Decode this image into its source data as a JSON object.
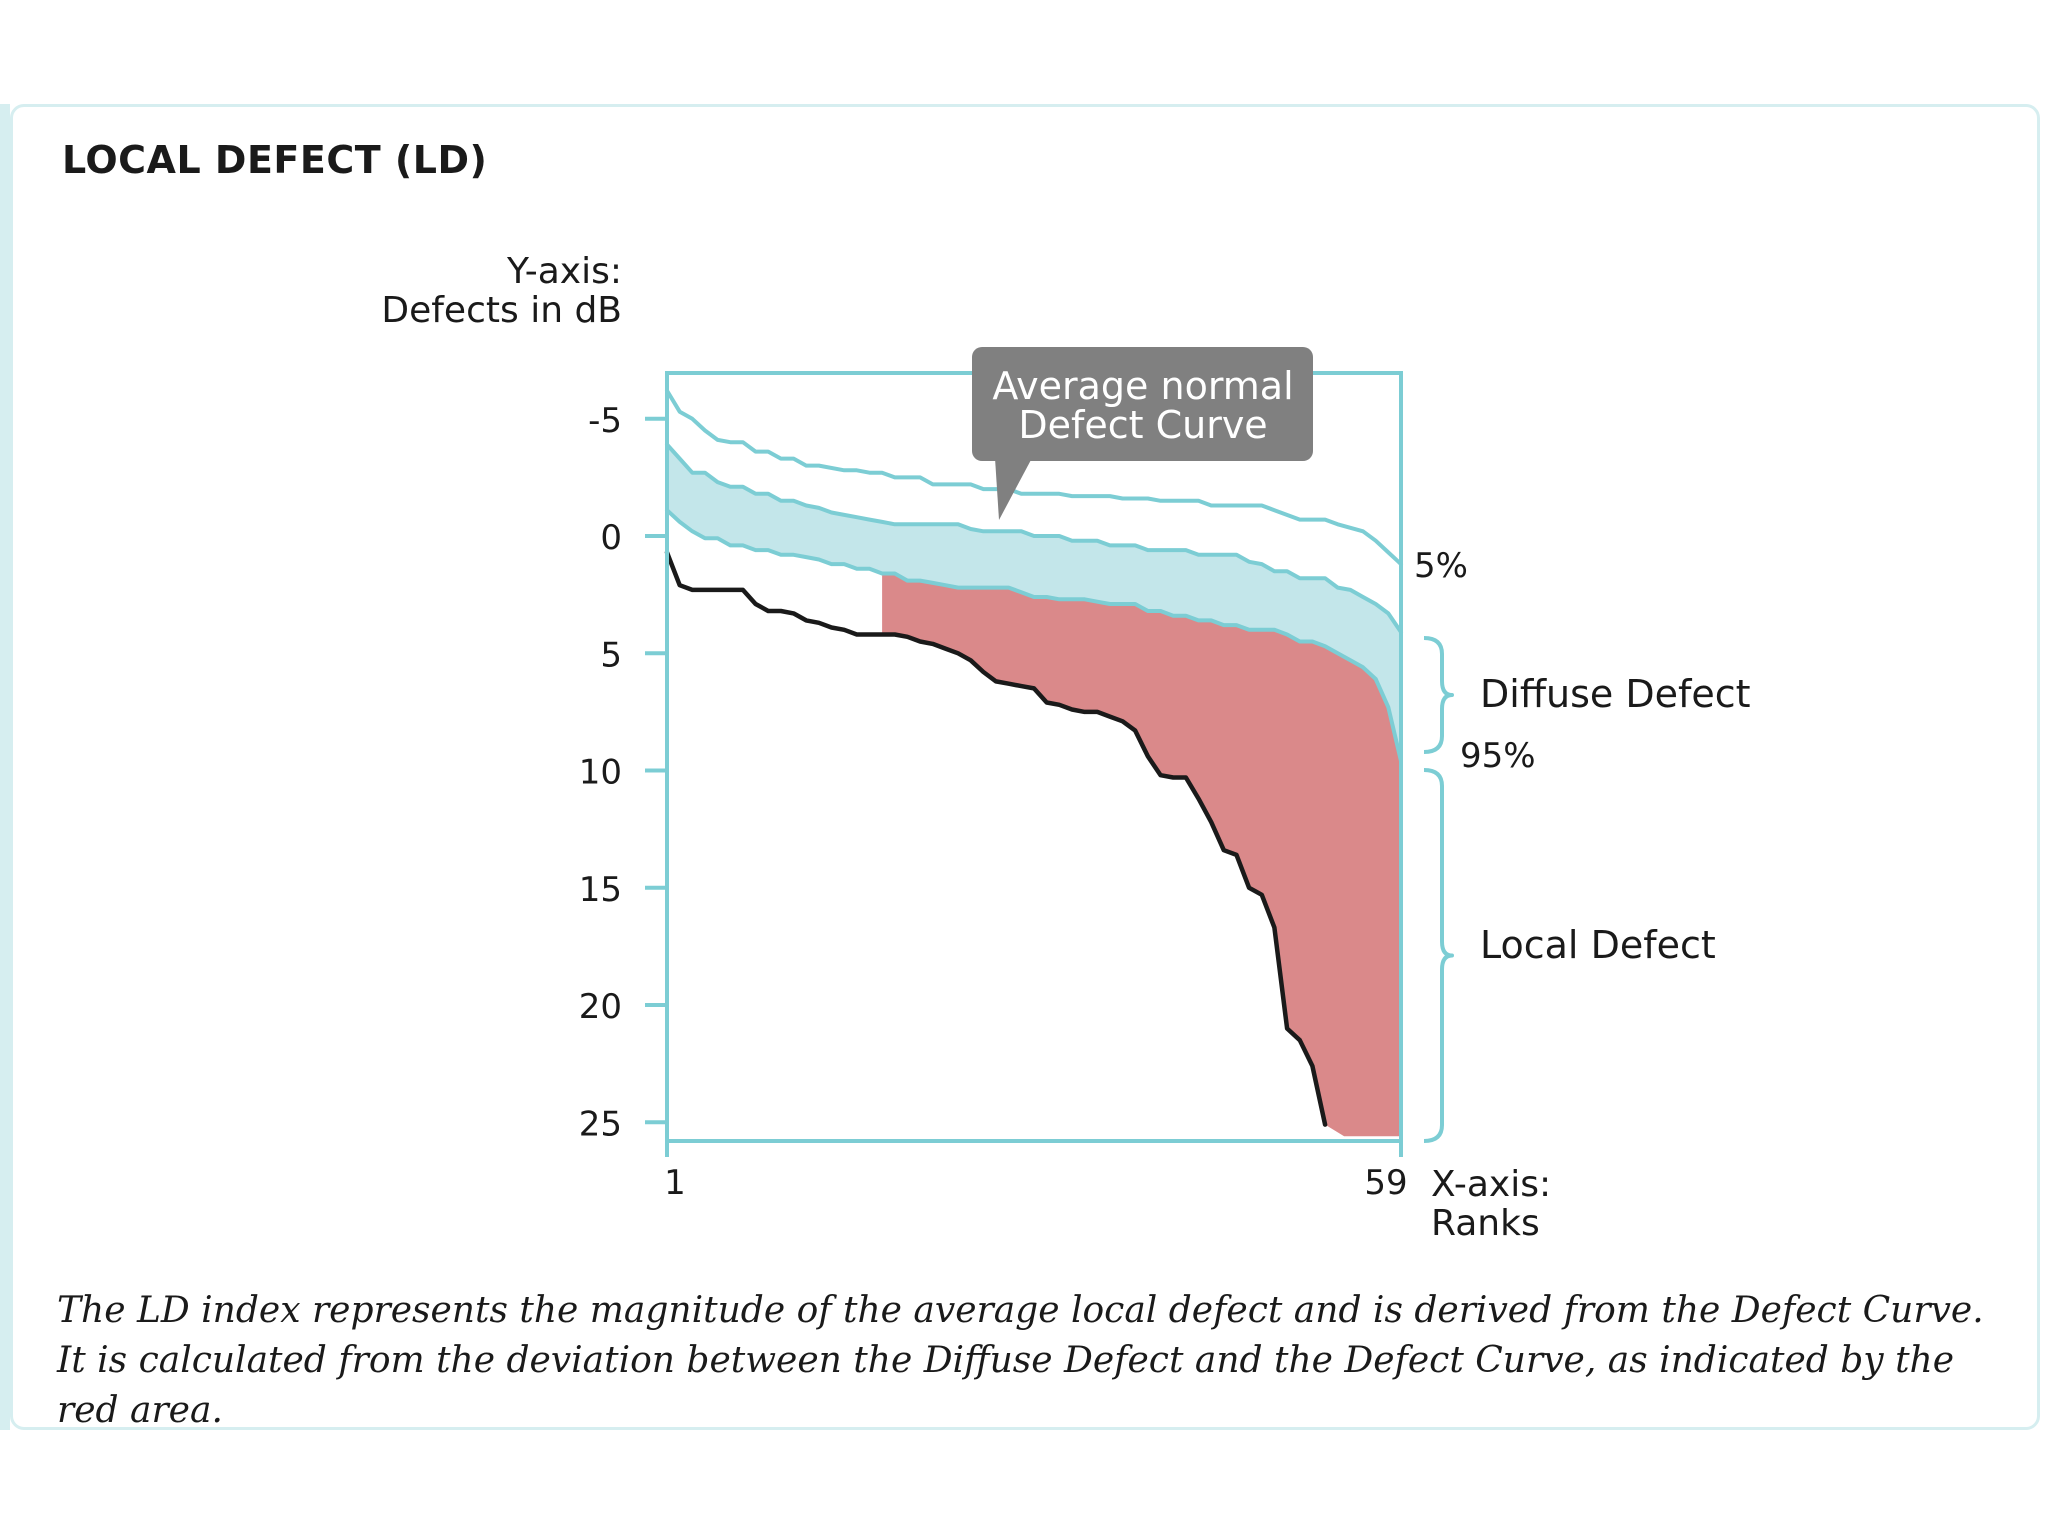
{
  "title": "LOCAL DEFECT (LD)",
  "caption": "The LD index represents the magnitude of the average local defect and is derived from the Defect Curve. It is calculated from the deviation between the Diffuse Defect and the Defect Curve, as indicated by the red area.",
  "colors": {
    "frame": "#7ccdd4",
    "band": "#c3e6ea",
    "local_defect": "#da898a",
    "defect_curve": "#1a1a1a",
    "callout": "#808080"
  },
  "chart_data": {
    "type": "line",
    "ylabel_lines": [
      "Y-axis:",
      "Defects in dB"
    ],
    "xlabel_lines": [
      "X-axis:",
      "Ranks"
    ],
    "yticks": [
      -5,
      0,
      5,
      10,
      15,
      20,
      25
    ],
    "xticks": [
      1,
      59
    ],
    "ylim": [
      -7,
      26
    ],
    "xlim": [
      1,
      59
    ],
    "y_inverted": true,
    "callout_lines": [
      "Average normal",
      "Defect Curve"
    ],
    "annotations": {
      "p5": "5%",
      "p95": "95%",
      "diffuse": "Diffuse Defect",
      "local": "Local Defect"
    },
    "series": [
      {
        "points": [
          [
            1,
            -6.2
          ],
          [
            2,
            -5.3
          ],
          [
            3,
            -5.0
          ],
          [
            4,
            -4.5
          ],
          [
            5,
            -4.1
          ],
          [
            6,
            -4.0
          ],
          [
            7,
            -4.0
          ],
          [
            8,
            -3.6
          ],
          [
            9,
            -3.6
          ],
          [
            10,
            -3.3
          ],
          [
            11,
            -3.3
          ],
          [
            12,
            -3.0
          ],
          [
            13,
            -3.0
          ],
          [
            15,
            -2.8
          ],
          [
            16,
            -2.8
          ],
          [
            17,
            -2.7
          ],
          [
            18,
            -2.7
          ],
          [
            19,
            -2.5
          ],
          [
            21,
            -2.5
          ],
          [
            22,
            -2.2
          ],
          [
            25,
            -2.2
          ],
          [
            26,
            -2.0
          ],
          [
            28,
            -2.0
          ],
          [
            29,
            -1.8
          ],
          [
            32,
            -1.8
          ],
          [
            33,
            -1.7
          ],
          [
            36,
            -1.7
          ],
          [
            37,
            -1.6
          ],
          [
            39,
            -1.6
          ],
          [
            40,
            -1.5
          ],
          [
            43,
            -1.5
          ],
          [
            44,
            -1.3
          ],
          [
            48,
            -1.3
          ],
          [
            49,
            -1.1
          ],
          [
            51,
            -0.7
          ],
          [
            53,
            -0.7
          ],
          [
            54,
            -0.5
          ],
          [
            56,
            -0.2
          ],
          [
            57,
            0.2
          ],
          [
            58,
            0.7
          ],
          [
            59,
            1.2
          ]
        ]
      },
      {
        "points": [
          [
            1,
            -3.9
          ],
          [
            2,
            -3.3
          ],
          [
            3,
            -2.7
          ],
          [
            4,
            -2.7
          ],
          [
            5,
            -2.3
          ],
          [
            6,
            -2.1
          ],
          [
            7,
            -2.1
          ],
          [
            8,
            -1.8
          ],
          [
            9,
            -1.8
          ],
          [
            10,
            -1.5
          ],
          [
            11,
            -1.5
          ],
          [
            12,
            -1.3
          ],
          [
            13,
            -1.2
          ],
          [
            14,
            -1.0
          ],
          [
            15,
            -0.9
          ],
          [
            16,
            -0.8
          ],
          [
            17,
            -0.7
          ],
          [
            18,
            -0.6
          ],
          [
            19,
            -0.5
          ],
          [
            20,
            -0.5
          ],
          [
            24,
            -0.5
          ],
          [
            25,
            -0.3
          ],
          [
            26,
            -0.2
          ],
          [
            29,
            -0.2
          ],
          [
            30,
            0.0
          ],
          [
            32,
            0.0
          ],
          [
            33,
            0.2
          ],
          [
            35,
            0.2
          ],
          [
            36,
            0.4
          ],
          [
            38,
            0.4
          ],
          [
            39,
            0.6
          ],
          [
            42,
            0.6
          ],
          [
            43,
            0.8
          ],
          [
            46,
            0.8
          ],
          [
            47,
            1.1
          ],
          [
            48,
            1.2
          ],
          [
            49,
            1.5
          ],
          [
            50,
            1.5
          ],
          [
            51,
            1.8
          ],
          [
            53,
            1.8
          ],
          [
            54,
            2.2
          ],
          [
            55,
            2.3
          ],
          [
            56,
            2.6
          ],
          [
            57,
            2.9
          ],
          [
            58,
            3.3
          ],
          [
            59,
            4.1
          ]
        ]
      },
      {
        "points": [
          [
            1,
            -1.1
          ],
          [
            2,
            -0.6
          ],
          [
            3,
            -0.2
          ],
          [
            4,
            0.1
          ],
          [
            5,
            0.1
          ],
          [
            6,
            0.4
          ],
          [
            7,
            0.4
          ],
          [
            8,
            0.6
          ],
          [
            9,
            0.6
          ],
          [
            10,
            0.8
          ],
          [
            11,
            0.8
          ],
          [
            12,
            0.9
          ],
          [
            13,
            1.0
          ],
          [
            14,
            1.2
          ],
          [
            15,
            1.2
          ],
          [
            16,
            1.4
          ],
          [
            17,
            1.4
          ],
          [
            18,
            1.6
          ],
          [
            19,
            1.6
          ],
          [
            20,
            1.9
          ],
          [
            21,
            1.9
          ],
          [
            22,
            2.0
          ],
          [
            23,
            2.1
          ],
          [
            24,
            2.2
          ],
          [
            28,
            2.2
          ],
          [
            29,
            2.4
          ],
          [
            30,
            2.6
          ],
          [
            31,
            2.6
          ],
          [
            32,
            2.7
          ],
          [
            34,
            2.7
          ],
          [
            35,
            2.8
          ],
          [
            36,
            2.9
          ],
          [
            38,
            2.9
          ],
          [
            39,
            3.2
          ],
          [
            40,
            3.2
          ],
          [
            41,
            3.4
          ],
          [
            42,
            3.4
          ],
          [
            43,
            3.6
          ],
          [
            44,
            3.6
          ],
          [
            45,
            3.8
          ],
          [
            46,
            3.8
          ],
          [
            47,
            4.0
          ],
          [
            49,
            4.0
          ],
          [
            50,
            4.2
          ],
          [
            51,
            4.5
          ],
          [
            52,
            4.5
          ],
          [
            53,
            4.7
          ],
          [
            54,
            5.0
          ],
          [
            55,
            5.3
          ],
          [
            56,
            5.6
          ],
          [
            57,
            6.1
          ],
          [
            58,
            7.3
          ],
          [
            59,
            9.6
          ]
        ]
      },
      {
        "points": [
          [
            1,
            0.7
          ],
          [
            2,
            2.1
          ],
          [
            3,
            2.3
          ],
          [
            7,
            2.3
          ],
          [
            8,
            2.9
          ],
          [
            9,
            3.2
          ],
          [
            10,
            3.2
          ],
          [
            11,
            3.3
          ],
          [
            12,
            3.6
          ],
          [
            13,
            3.7
          ],
          [
            14,
            3.9
          ],
          [
            15,
            4.0
          ],
          [
            16,
            4.2
          ],
          [
            19,
            4.2
          ],
          [
            20,
            4.3
          ],
          [
            21,
            4.5
          ],
          [
            22,
            4.6
          ],
          [
            23,
            4.8
          ],
          [
            24,
            5.0
          ],
          [
            25,
            5.3
          ],
          [
            26,
            5.8
          ],
          [
            27,
            6.2
          ],
          [
            28,
            6.3
          ],
          [
            29,
            6.4
          ],
          [
            30,
            6.5
          ],
          [
            31,
            7.1
          ],
          [
            32,
            7.2
          ],
          [
            33,
            7.4
          ],
          [
            34,
            7.5
          ],
          [
            35,
            7.5
          ],
          [
            36,
            7.7
          ],
          [
            37,
            7.9
          ],
          [
            38,
            8.3
          ],
          [
            39,
            9.4
          ],
          [
            40,
            10.2
          ],
          [
            41,
            10.3
          ],
          [
            42,
            10.3
          ],
          [
            43,
            11.2
          ],
          [
            44,
            12.2
          ],
          [
            45,
            13.4
          ],
          [
            46,
            13.6
          ],
          [
            47,
            15.0
          ],
          [
            48,
            15.3
          ],
          [
            49,
            16.7
          ],
          [
            50,
            21.0
          ],
          [
            51,
            21.5
          ],
          [
            52,
            22.6
          ],
          [
            53,
            25.1
          ]
        ]
      }
    ]
  }
}
